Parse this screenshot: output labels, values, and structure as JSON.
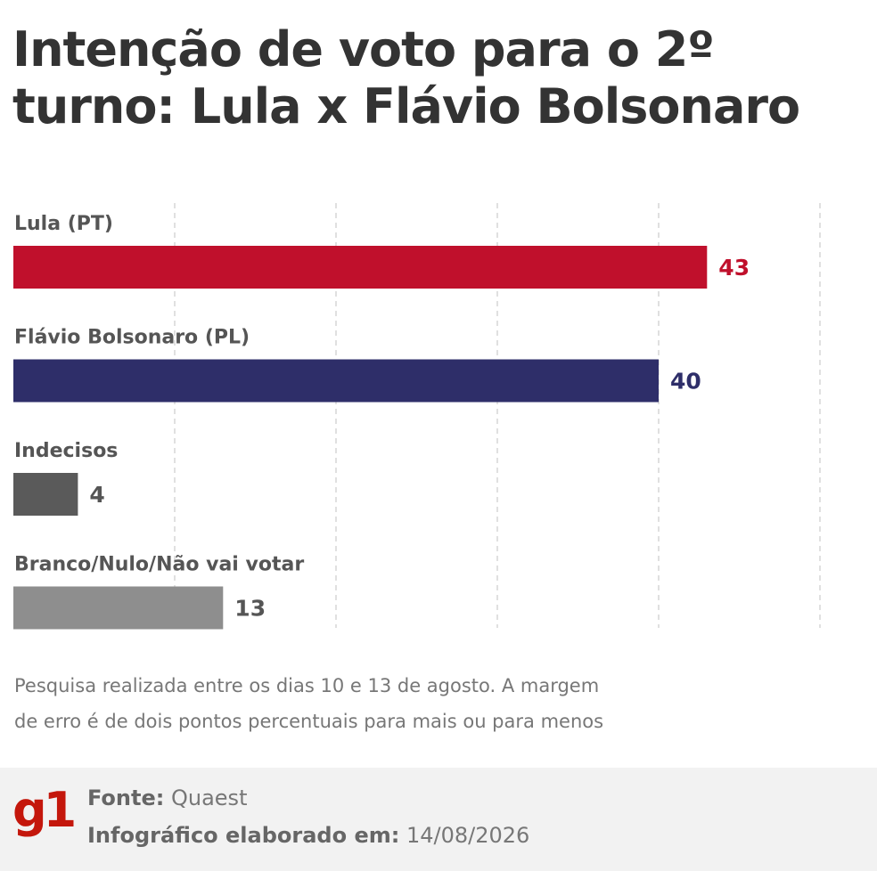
{
  "header": {
    "title": "Intenção de voto para o 2º turno: Lula x Flávio Bolsonaro"
  },
  "chart_data": {
    "type": "bar",
    "orientation": "horizontal",
    "title": "Intenção de voto para o 2º turno: Lula x Flávio Bolsonaro",
    "categories": [
      "Lula (PT)",
      "Flávio Bolsonaro (PL)",
      "Indecisos",
      "Branco/Nulo/Não vai votar"
    ],
    "values": [
      43,
      40,
      4,
      13
    ],
    "colors": [
      "#c0102c",
      "#2e2e69",
      "#5a5a5a",
      "#8e8e8e"
    ],
    "value_label_colors": [
      "#c0102c",
      "#2e2e69",
      "#555555",
      "#555555"
    ],
    "xlim": [
      0,
      50
    ],
    "grid": true,
    "grid_style": "dashed vertical",
    "legend": "none"
  },
  "note": {
    "line1": "Pesquisa realizada entre os dias 10 e 13 de agosto. A margem",
    "line2": "de erro é de dois pontos percentuais para mais ou para menos"
  },
  "footer": {
    "logo": "g1",
    "source_label": "Fonte:",
    "source_value": "Quaest",
    "date_label": "Infográfico elaborado em:",
    "date_value": "14/08/2026"
  }
}
